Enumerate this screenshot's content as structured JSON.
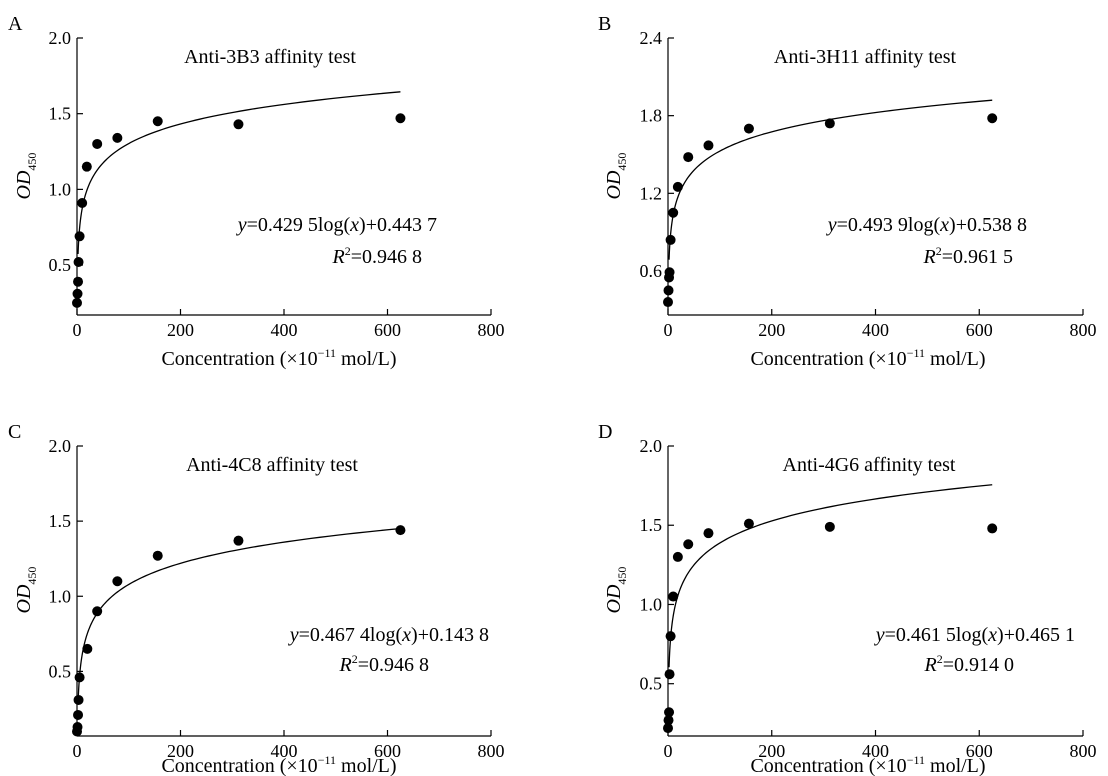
{
  "figure": {
    "background": "#ffffff",
    "marker_color": "#000000",
    "line_color": "#000000"
  },
  "chart_data": [
    {
      "panel_label": "A",
      "type": "scatter",
      "title": "Anti-3B3 affinity test",
      "xlabel": {
        "pre": "Concentration (×10",
        "sup": "−11",
        "post": " mol/L)"
      },
      "ylabel": {
        "main": "OD",
        "sub": "450"
      },
      "xlim": [
        0,
        800
      ],
      "ylim": [
        0.17,
        2.0
      ],
      "xticks": [
        "0",
        "200",
        "400",
        "600",
        "800"
      ],
      "yticks": [
        "0.5",
        "1.0",
        "1.5",
        "2.0"
      ],
      "points": [
        [
          0,
          0.25
        ],
        [
          1,
          0.31
        ],
        [
          2,
          0.39
        ],
        [
          3,
          0.52
        ],
        [
          5,
          0.69
        ],
        [
          10,
          0.91
        ],
        [
          19,
          1.15
        ],
        [
          39,
          1.3
        ],
        [
          78,
          1.34
        ],
        [
          156,
          1.45
        ],
        [
          312,
          1.43
        ],
        [
          625,
          1.47
        ]
      ],
      "fit": {
        "a": 0.4295,
        "b": 0.4437,
        "x_start": 2,
        "x_end": 625
      },
      "equation": {
        "y": "y",
        "eq_pre": "=0.429 5log(",
        "x": "x",
        "eq_post": ")+0.443 7",
        "R": "R",
        "r_sup": "2",
        "r_post": "=0.946 8"
      }
    },
    {
      "panel_label": "B",
      "type": "scatter",
      "title": "Anti-3H11 affinity test",
      "xlabel": {
        "pre": "Concentration (×10",
        "sup": "−11",
        "post": " mol/L)"
      },
      "ylabel": {
        "main": "OD",
        "sub": "450"
      },
      "xlim": [
        0,
        800
      ],
      "ylim": [
        0.26,
        2.4
      ],
      "xticks": [
        "0",
        "200",
        "400",
        "600",
        "800"
      ],
      "yticks": [
        "0.6",
        "1.2",
        "1.8",
        "2.4"
      ],
      "points": [
        [
          0,
          0.36
        ],
        [
          1,
          0.45
        ],
        [
          2,
          0.55
        ],
        [
          3,
          0.59
        ],
        [
          5,
          0.84
        ],
        [
          10,
          1.05
        ],
        [
          19,
          1.25
        ],
        [
          39,
          1.48
        ],
        [
          78,
          1.57
        ],
        [
          156,
          1.7
        ],
        [
          312,
          1.74
        ],
        [
          625,
          1.78
        ]
      ],
      "fit": {
        "a": 0.4939,
        "b": 0.5388,
        "x_start": 2,
        "x_end": 625
      },
      "equation": {
        "y": "y",
        "eq_pre": "=0.493 9log(",
        "x": "x",
        "eq_post": ")+0.538 8",
        "R": "R",
        "r_sup": "2",
        "r_post": "=0.961 5"
      }
    },
    {
      "panel_label": "C",
      "type": "scatter",
      "title": "Anti-4C8 affinity test",
      "xlabel": {
        "pre": "Concentration (×10",
        "sup": "−11",
        "post": " mol/L)"
      },
      "ylabel": {
        "main": "OD",
        "sub": "450"
      },
      "xlim": [
        0,
        800
      ],
      "ylim": [
        0.07,
        2.0
      ],
      "xticks": [
        "0",
        "200",
        "400",
        "600",
        "800"
      ],
      "yticks": [
        "0.5",
        "1.0",
        "1.5",
        "2.0"
      ],
      "points": [
        [
          0,
          0.1
        ],
        [
          1,
          0.13
        ],
        [
          2,
          0.21
        ],
        [
          3,
          0.31
        ],
        [
          5,
          0.46
        ],
        [
          20,
          0.65
        ],
        [
          39,
          0.9
        ],
        [
          78,
          1.1
        ],
        [
          156,
          1.27
        ],
        [
          312,
          1.37
        ],
        [
          625,
          1.44
        ]
      ],
      "fit": {
        "a": 0.4674,
        "b": 0.1438,
        "x_start": 2,
        "x_end": 625
      },
      "equation": {
        "y": "y",
        "eq_pre": "=0.467 4log(",
        "x": "x",
        "eq_post": ")+0.143 8",
        "R": "R",
        "r_sup": "2",
        "r_post": "=0.946 8"
      }
    },
    {
      "panel_label": "D",
      "type": "scatter",
      "title": "Anti-4G6 affinity test",
      "xlabel": {
        "pre": "Concentration (×10",
        "sup": "−11",
        "post": " mol/L)"
      },
      "ylabel": {
        "main": "OD",
        "sub": "450"
      },
      "xlim": [
        0,
        800
      ],
      "ylim": [
        0.17,
        2.0
      ],
      "xticks": [
        "0",
        "200",
        "400",
        "600",
        "800"
      ],
      "yticks": [
        "0.5",
        "1.0",
        "1.5",
        "2.0"
      ],
      "points": [
        [
          0,
          0.22
        ],
        [
          1,
          0.27
        ],
        [
          2,
          0.32
        ],
        [
          3,
          0.56
        ],
        [
          5,
          0.8
        ],
        [
          10,
          1.05
        ],
        [
          19,
          1.3
        ],
        [
          39,
          1.38
        ],
        [
          78,
          1.45
        ],
        [
          156,
          1.51
        ],
        [
          312,
          1.49
        ],
        [
          625,
          1.48
        ]
      ],
      "fit": {
        "a": 0.4615,
        "b": 0.4651,
        "x_start": 2,
        "x_end": 625
      },
      "equation": {
        "y": "y",
        "eq_pre": "=0.461 5log(",
        "x": "x",
        "eq_post": ")+0.465 1",
        "R": "R",
        "r_sup": "2",
        "r_post": "=0.914 0"
      }
    }
  ]
}
